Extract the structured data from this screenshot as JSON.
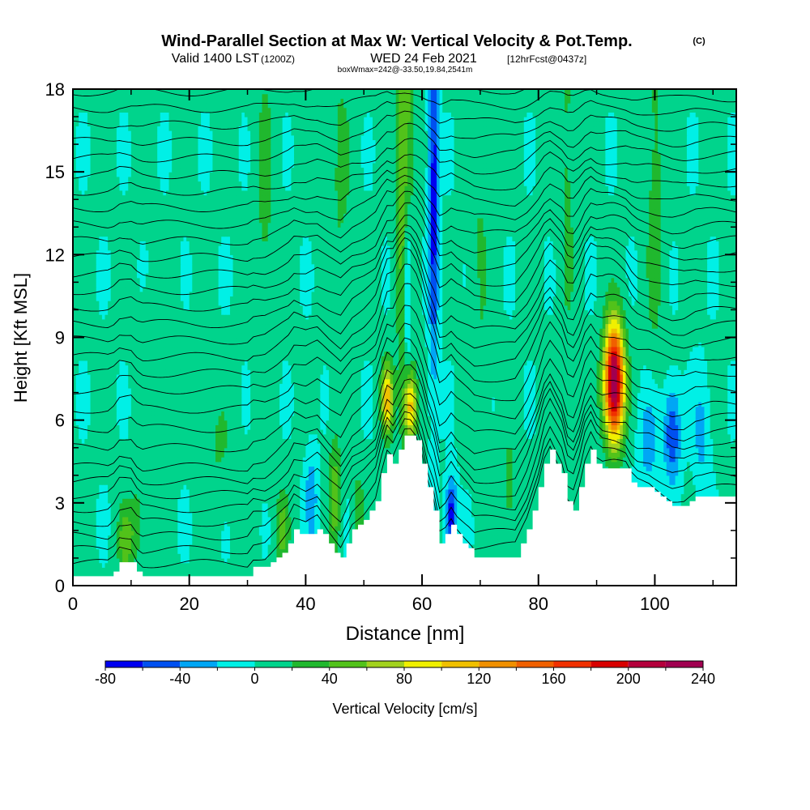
{
  "chart_data": {
    "type": "heatmap",
    "title": "Wind-Parallel Section at Max W: Vertical Velocity & Pot.Temp.",
    "title_mark": "(C)",
    "subtitle_main": "Valid 1400 LST",
    "subtitle_utc": "(1200Z)",
    "subtitle_date": "WED 24 Feb 2021",
    "subtitle_fcst": "[12hrFcst@0437z]",
    "subsubtitle": "boxWmax=242@-33.50,19.84,2541m",
    "xlabel": "Distance [nm]",
    "ylabel": "Height [Kft MSL]",
    "xlim": [
      0,
      114
    ],
    "ylim": [
      0,
      18
    ],
    "x_ticks": [
      {
        "v": 0,
        "label": "0"
      },
      {
        "v": 20,
        "label": "20"
      },
      {
        "v": 40,
        "label": "40"
      },
      {
        "v": 60,
        "label": "60"
      },
      {
        "v": 80,
        "label": "80"
      },
      {
        "v": 100,
        "label": "100"
      }
    ],
    "y_ticks": [
      {
        "v": 0,
        "label": "0"
      },
      {
        "v": 3,
        "label": "3"
      },
      {
        "v": 6,
        "label": "6"
      },
      {
        "v": 9,
        "label": "9"
      },
      {
        "v": 12,
        "label": "12"
      },
      {
        "v": 15,
        "label": "15"
      },
      {
        "v": 18,
        "label": "18"
      }
    ],
    "colorbar": {
      "label": "Vertical Velocity [cm/s]",
      "min": -80,
      "max": 240,
      "step": 20,
      "colors": [
        "#0000f0",
        "#0050f0",
        "#00a6f5",
        "#00f0e6",
        "#00d48c",
        "#20b82e",
        "#52c21a",
        "#a2d21e",
        "#f0f000",
        "#f0c000",
        "#f09000",
        "#f06000",
        "#f03000",
        "#d80000",
        "#b4003c",
        "#a00050"
      ],
      "labels": [
        {
          "v": -80,
          "label": "-80"
        },
        {
          "v": -40,
          "label": "-40"
        },
        {
          "v": 0,
          "label": "0"
        },
        {
          "v": 40,
          "label": "40"
        },
        {
          "v": 80,
          "label": "80"
        },
        {
          "v": 120,
          "label": "120"
        },
        {
          "v": 160,
          "label": "160"
        },
        {
          "v": 200,
          "label": "200"
        },
        {
          "v": 240,
          "label": "240"
        }
      ]
    },
    "terrain": [
      [
        0,
        0.3
      ],
      [
        6,
        0.3
      ],
      [
        7,
        0.5
      ],
      [
        8,
        0.9
      ],
      [
        10,
        0.9
      ],
      [
        11,
        0.5
      ],
      [
        12,
        0.3
      ],
      [
        30,
        0.3
      ],
      [
        31,
        0.6
      ],
      [
        33,
        0.6
      ],
      [
        35,
        1.0
      ],
      [
        37,
        1.5
      ],
      [
        38,
        2.0
      ],
      [
        40,
        1.8
      ],
      [
        42,
        2.1
      ],
      [
        44,
        1.5
      ],
      [
        46,
        1.0
      ],
      [
        48,
        2.0
      ],
      [
        50,
        2.4
      ],
      [
        52,
        3.0
      ],
      [
        53,
        4.0
      ],
      [
        54,
        4.8
      ],
      [
        55,
        4.5
      ],
      [
        56,
        5.0
      ],
      [
        57,
        5.5
      ],
      [
        58,
        5.5
      ],
      [
        59,
        5.2
      ],
      [
        60,
        4.5
      ],
      [
        61,
        3.5
      ],
      [
        62,
        2.8
      ],
      [
        63,
        1.6
      ],
      [
        64,
        1.8
      ],
      [
        65,
        2.2
      ],
      [
        66,
        1.8
      ],
      [
        68,
        1.3
      ],
      [
        69,
        1.0
      ],
      [
        76,
        1.0
      ],
      [
        78,
        2.0
      ],
      [
        80,
        3.5
      ],
      [
        81,
        4.5
      ],
      [
        82,
        5.0
      ],
      [
        83,
        4.5
      ],
      [
        84,
        4.0
      ],
      [
        85,
        3.0
      ],
      [
        86,
        2.8
      ],
      [
        87,
        3.5
      ],
      [
        88,
        4.5
      ],
      [
        89,
        5.0
      ],
      [
        90,
        4.5
      ],
      [
        91,
        4.3
      ],
      [
        93,
        4.3
      ],
      [
        95,
        4.2
      ],
      [
        96,
        3.8
      ],
      [
        97,
        3.6
      ],
      [
        99,
        3.5
      ],
      [
        101,
        3.2
      ],
      [
        103,
        2.9
      ],
      [
        105,
        2.9
      ],
      [
        107,
        3.2
      ],
      [
        108,
        3.2
      ],
      [
        110,
        3.3
      ],
      [
        114,
        3.3
      ]
    ],
    "w_features": [
      {
        "x": 93,
        "z": 7.4,
        "sx": 1.2,
        "sz": 1.5,
        "w": 240
      },
      {
        "x": 54,
        "z": 6.8,
        "sx": 0.7,
        "sz": 0.9,
        "w": 110
      },
      {
        "x": 58,
        "z": 6.5,
        "sx": 0.8,
        "sz": 0.9,
        "w": 100
      },
      {
        "x": 45,
        "z": 3.3,
        "sx": 0.7,
        "sz": 1.5,
        "w": 50
      },
      {
        "x": 36,
        "z": 2.0,
        "sx": 0.8,
        "sz": 1.0,
        "w": 45
      },
      {
        "x": 9,
        "z": 1.6,
        "sx": 0.9,
        "sz": 0.9,
        "w": 50
      },
      {
        "x": 11,
        "z": 2.3,
        "sx": 0.8,
        "sz": 1.0,
        "w": 30
      },
      {
        "x": 75,
        "z": 3.5,
        "sx": 1.0,
        "sz": 1.5,
        "w": 25
      },
      {
        "x": 49,
        "z": 2.8,
        "sx": 0.7,
        "sz": 0.9,
        "w": 35
      },
      {
        "x": 62,
        "z": 14.5,
        "sx": 0.6,
        "sz": 5.0,
        "w": -75
      },
      {
        "x": 57.5,
        "z": 11.0,
        "sx": 0.5,
        "sz": 2.2,
        "w": -70
      },
      {
        "x": 65,
        "z": 2.5,
        "sx": 0.7,
        "sz": 1.0,
        "w": -80
      },
      {
        "x": 103,
        "z": 5.5,
        "sx": 1.0,
        "sz": 1.2,
        "w": -65
      },
      {
        "x": 99,
        "z": 5.2,
        "sx": 1.3,
        "sz": 1.5,
        "w": -35
      },
      {
        "x": 108,
        "z": 5.5,
        "sx": 1.0,
        "sz": 1.5,
        "w": -30
      },
      {
        "x": 41,
        "z": 3.2,
        "sx": 0.7,
        "sz": 1.2,
        "w": -40
      },
      {
        "x": 57,
        "z": 15.0,
        "sx": 1.0,
        "sz": 6.0,
        "w": 60
      },
      {
        "x": 33,
        "z": 14.0,
        "sx": 1.2,
        "sz": 5.0,
        "w": 22
      },
      {
        "x": 46,
        "z": 15.0,
        "sx": 1.5,
        "sz": 4.0,
        "w": 20
      },
      {
        "x": 100,
        "z": 14.0,
        "sx": 1.2,
        "sz": 5.0,
        "w": 25
      },
      {
        "x": 15,
        "z": 8.0,
        "sx": 2.0,
        "sz": 2.0,
        "w": 18
      },
      {
        "x": 25,
        "z": 5.0,
        "sx": 2.0,
        "sz": 1.5,
        "w": 18
      },
      {
        "x": 85,
        "z": 15.0,
        "sx": 1.0,
        "sz": 5.0,
        "w": 22
      },
      {
        "x": 70,
        "z": 12.0,
        "sx": 1.2,
        "sz": 5.0,
        "w": 18
      }
    ],
    "isentropes": {
      "base_levels": [
        0.8,
        1.3,
        1.8,
        2.3,
        2.8,
        3.3,
        3.8,
        4.3,
        5.0,
        5.7,
        6.4,
        7.1,
        7.7,
        8.3,
        8.9,
        9.5,
        10.1,
        10.7,
        11.3,
        11.9,
        12.5,
        13.1,
        13.7,
        14.3,
        14.9,
        15.5,
        16.1,
        16.7,
        17.3,
        17.9
      ]
    }
  }
}
